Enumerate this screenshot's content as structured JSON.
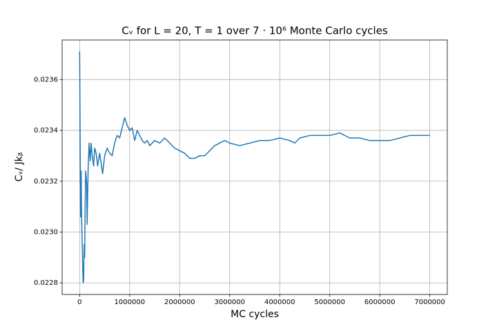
{
  "chart_data": {
    "type": "line",
    "title": "Cᵥ for L = 20, T = 1 over 7 · 10⁶ Monte Carlo cycles",
    "xlabel": "MC cycles",
    "ylabel": "Cᵥ/ Jkᵦ",
    "color": "#1f77b4",
    "grid": true,
    "x": [
      0,
      10000,
      20000,
      30000,
      40000,
      50000,
      60000,
      70000,
      80000,
      90000,
      100000,
      110000,
      120000,
      140000,
      150000,
      170000,
      190000,
      210000,
      230000,
      250000,
      280000,
      300000,
      330000,
      360000,
      400000,
      430000,
      460000,
      500000,
      550000,
      600000,
      650000,
      700000,
      750000,
      800000,
      850000,
      900000,
      950000,
      1000000,
      1050000,
      1100000,
      1150000,
      1200000,
      1250000,
      1300000,
      1350000,
      1400000,
      1500000,
      1600000,
      1700000,
      1800000,
      1900000,
      2000000,
      2100000,
      2200000,
      2300000,
      2400000,
      2500000,
      2600000,
      2700000,
      2800000,
      2900000,
      3000000,
      3200000,
      3400000,
      3600000,
      3800000,
      4000000,
      4200000,
      4300000,
      4400000,
      4600000,
      4800000,
      5000000,
      5200000,
      5400000,
      5600000,
      5800000,
      6000000,
      6200000,
      6400000,
      6600000,
      6800000,
      7000000
    ],
    "values": [
      0.02371,
      0.02337,
      0.02306,
      0.02324,
      0.02305,
      0.02296,
      0.02288,
      0.0228,
      0.02281,
      0.02295,
      0.0229,
      0.0231,
      0.02324,
      0.02319,
      0.02303,
      0.02325,
      0.02335,
      0.02328,
      0.02335,
      0.0233,
      0.02326,
      0.02333,
      0.02331,
      0.02326,
      0.02331,
      0.02327,
      0.02323,
      0.0233,
      0.02333,
      0.02331,
      0.0233,
      0.02335,
      0.02338,
      0.02337,
      0.02341,
      0.02345,
      0.02342,
      0.0234,
      0.02341,
      0.02336,
      0.0234,
      0.02338,
      0.02336,
      0.02335,
      0.02336,
      0.02334,
      0.02336,
      0.02335,
      0.02337,
      0.02335,
      0.02333,
      0.02332,
      0.02331,
      0.02329,
      0.02329,
      0.0233,
      0.0233,
      0.02332,
      0.02334,
      0.02335,
      0.02336,
      0.02335,
      0.02334,
      0.02335,
      0.02336,
      0.02336,
      0.02337,
      0.02336,
      0.02335,
      0.02337,
      0.02338,
      0.02338,
      0.02338,
      0.02339,
      0.02337,
      0.02337,
      0.02336,
      0.02336,
      0.02336,
      0.02337,
      0.02338,
      0.02338,
      0.02338
    ],
    "xlim": [
      -350000,
      7350000
    ],
    "xticks": [
      0,
      1000000,
      2000000,
      3000000,
      4000000,
      5000000,
      6000000,
      7000000
    ],
    "ylim": [
      0.0227545,
      0.0237555
    ],
    "yticks": [
      0.0228,
      {
        "value": 0.023,
        "label": "0.0230"
      },
      0.0232,
      0.0234,
      0.0236
    ]
  }
}
